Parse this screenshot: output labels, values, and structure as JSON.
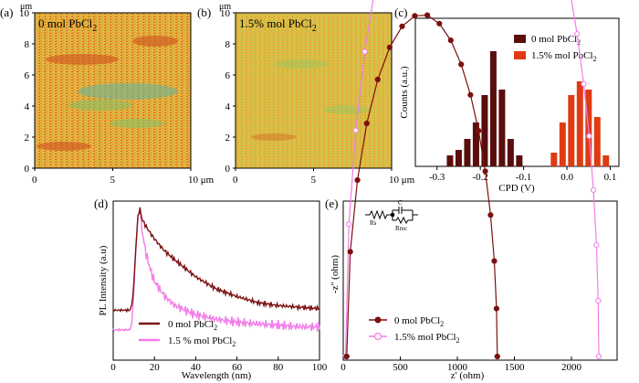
{
  "panels": {
    "a": {
      "label": "(a)",
      "title": "0 mol PbCl",
      "title_sub": "2",
      "unit": "μm",
      "y_ticks": [
        "0",
        "2",
        "4",
        "6",
        "8",
        "10"
      ],
      "x_ticks": [
        "0",
        "5",
        "10 μm"
      ]
    },
    "b": {
      "label": "(b)",
      "title": "1.5% mol PbCl",
      "title_sub": "2",
      "unit": "μm",
      "y_ticks": [
        "0",
        "2",
        "4",
        "6",
        "8",
        "10"
      ],
      "x_ticks": [
        "0",
        "5",
        "10 μm"
      ]
    },
    "c": {
      "label": "(c)"
    },
    "d": {
      "label": "(d)"
    },
    "e": {
      "label": "(e)",
      "circuit": {
        "rs": "Rs",
        "c": "C",
        "rrec": "Rrec"
      }
    }
  },
  "colors": {
    "dark_red": "#5a0d0d",
    "orange_red": "#e03a12",
    "maroon": "#7a1010",
    "pink": "#f27ce8",
    "map_base": "#e7b43e",
    "map_hot": "#d04a1c",
    "map_cool": "#7fc46a",
    "map_teal": "#5fb8a0"
  },
  "chart_data": [
    {
      "id": "c",
      "type": "bar",
      "xlabel": "CPD (V)",
      "ylabel": "Counts (a.u.)",
      "xlim": [
        -0.35,
        0.12
      ],
      "x_ticks": [
        -0.3,
        -0.2,
        -0.1,
        0.0,
        0.1
      ],
      "x_tick_labels": [
        "-0.3",
        "-0.2",
        "-0.1",
        "0.0",
        "0.1"
      ],
      "legend_position": "top-right",
      "series": [
        {
          "name": "0 mol PbCl",
          "name_sub": "2",
          "x": [
            -0.27,
            -0.25,
            -0.23,
            -0.21,
            -0.19,
            -0.17,
            -0.15,
            -0.13,
            -0.11
          ],
          "values": [
            0.4,
            0.6,
            1.0,
            1.6,
            2.6,
            4.2,
            2.8,
            1.0,
            0.4
          ]
        },
        {
          "name": "1.5% mol PbCl",
          "name_sub": "2",
          "x": [
            -0.03,
            -0.01,
            0.01,
            0.03,
            0.05,
            0.07,
            0.09
          ],
          "values": [
            0.5,
            1.6,
            2.6,
            3.1,
            2.8,
            1.8,
            0.4
          ]
        }
      ]
    },
    {
      "id": "d",
      "type": "line",
      "xlabel": "Wavelength (nm)",
      "ylabel": "PL Intensity (a.u)",
      "xlim": [
        0,
        100
      ],
      "ylim": [
        0,
        1.05
      ],
      "x_ticks": [
        0,
        20,
        40,
        60,
        80,
        100
      ],
      "legend_position": "bottom-left",
      "series": [
        {
          "name": "0 mol PbCl",
          "name_sub": "2",
          "x": [
            0,
            8,
            9,
            10,
            11,
            12,
            13,
            14,
            16,
            20,
            25,
            30,
            40,
            50,
            60,
            70,
            80,
            90,
            100
          ],
          "y": [
            0.33,
            0.33,
            0.36,
            0.5,
            0.75,
            0.95,
            1.0,
            0.93,
            0.88,
            0.8,
            0.72,
            0.66,
            0.55,
            0.47,
            0.42,
            0.38,
            0.36,
            0.35,
            0.34
          ]
        },
        {
          "name": "1.5 % mol PbCl",
          "name_sub": "2",
          "x": [
            0,
            8,
            9,
            10,
            11,
            12,
            13,
            14,
            16,
            18,
            20,
            25,
            30,
            40,
            50,
            60,
            70,
            80,
            90,
            100
          ],
          "y": [
            0.2,
            0.2,
            0.24,
            0.45,
            0.75,
            0.95,
            1.0,
            0.85,
            0.7,
            0.6,
            0.52,
            0.42,
            0.36,
            0.3,
            0.27,
            0.25,
            0.24,
            0.23,
            0.22,
            0.22
          ]
        }
      ]
    },
    {
      "id": "e",
      "type": "scatter",
      "xlabel": "z' (ohm)",
      "ylabel": "-z'' (ohm)",
      "xlim": [
        0,
        2400
      ],
      "x_ticks": [
        0,
        500,
        1000,
        1500,
        2000
      ],
      "legend_position": "bottom-center",
      "series": [
        {
          "name": "0 mol PbCl",
          "name_sub": "2",
          "center": 690,
          "radius": 660
        },
        {
          "name": "1.5% mol PbCl",
          "name_sub": "2",
          "center": 1130,
          "radius": 1110
        }
      ]
    }
  ]
}
